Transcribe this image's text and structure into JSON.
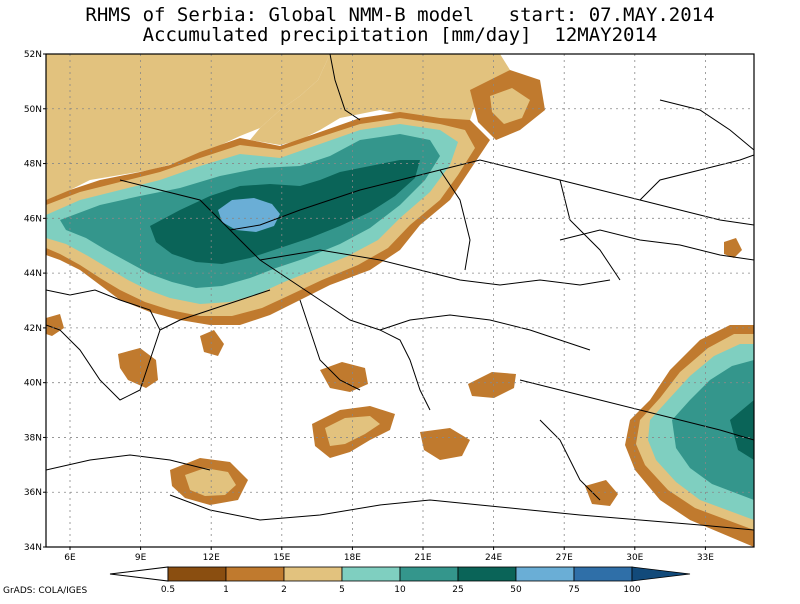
{
  "header": {
    "line1": "RHMS of Serbia: Global NMM-B model   start: 07.MAY.2014",
    "line2": "Accumulated precipitation [mm/day]  12MAY2014"
  },
  "axes": {
    "lat_labels": [
      "52N",
      "50N",
      "48N",
      "46N",
      "44N",
      "42N",
      "40N",
      "38N",
      "36N",
      "34N"
    ],
    "lon_labels": [
      "6E",
      "9E",
      "12E",
      "15E",
      "18E",
      "21E",
      "24E",
      "27E",
      "30E",
      "33E"
    ]
  },
  "colorbar": {
    "levels": [
      "0.5",
      "1",
      "2",
      "5",
      "10",
      "25",
      "50",
      "75",
      "100"
    ],
    "colors": [
      "#8a4e10",
      "#c07a2e",
      "#e2c27e",
      "#7fcfc0",
      "#34968c",
      "#0a6458",
      "#6aaed6",
      "#2f6fa8",
      "#124a7a"
    ]
  },
  "credit": "GrADS: COLA/IGES"
}
